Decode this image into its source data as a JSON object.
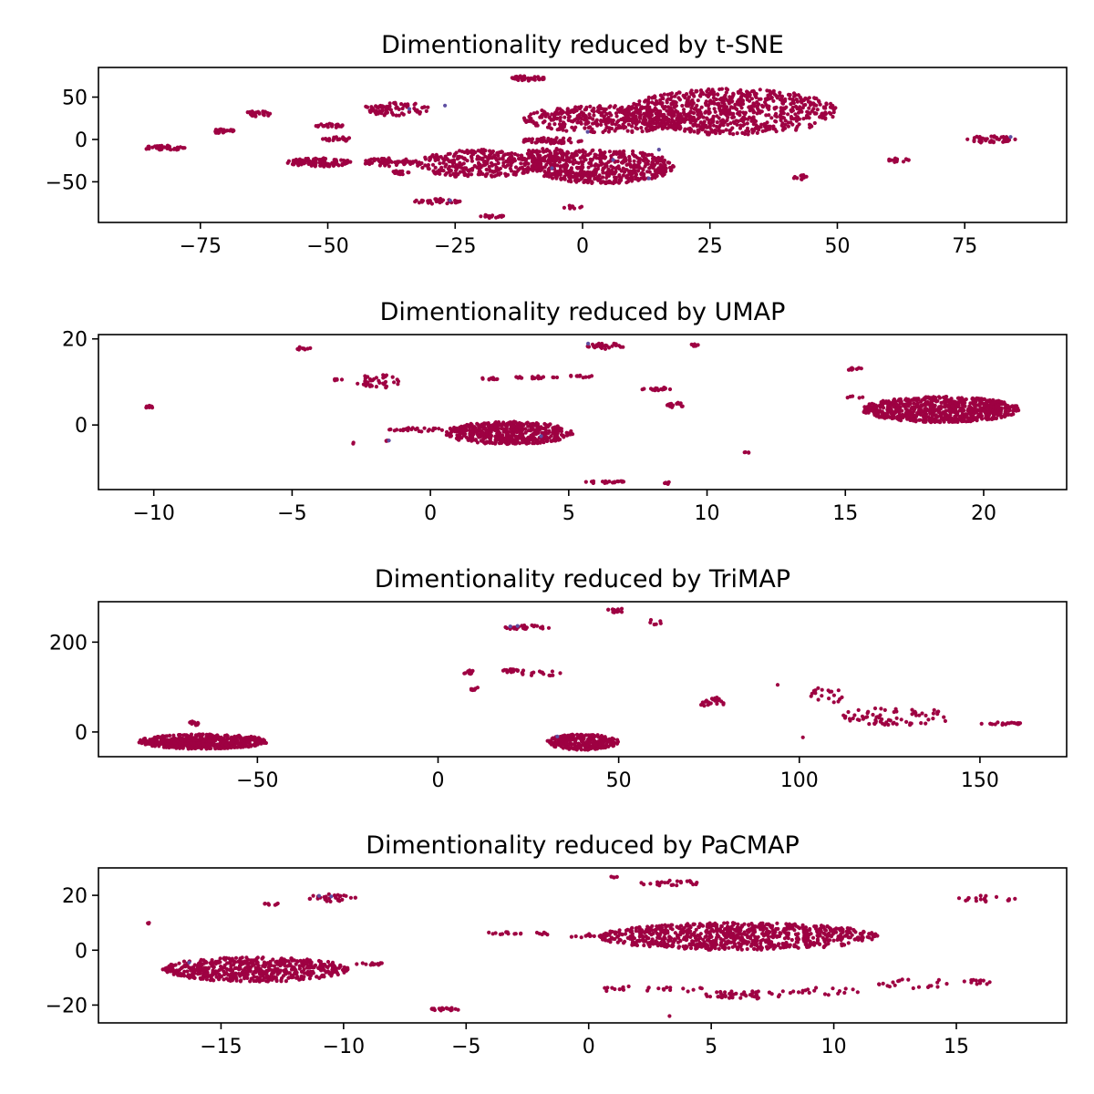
{
  "chart_data": [
    {
      "type": "scatter",
      "title": "Dimentionality reduced by t-SNE",
      "xlim": [
        -95,
        95
      ],
      "ylim": [
        -98,
        85
      ],
      "xticks": [
        -75,
        -50,
        -25,
        0,
        25,
        50,
        75
      ],
      "yticks": [
        -50,
        0,
        50
      ],
      "colors": {
        "main": "#9e0142",
        "minor": "#5e4fa2"
      },
      "clusters": [
        {
          "x": [
            -86,
            -78
          ],
          "y": [
            -13,
            -7
          ],
          "n": 40
        },
        {
          "x": [
            -73,
            -68
          ],
          "y": [
            7,
            12
          ],
          "n": 25
        },
        {
          "x": [
            -66,
            -61
          ],
          "y": [
            27,
            34
          ],
          "n": 25
        },
        {
          "x": [
            -58,
            -45
          ],
          "y": [
            -32,
            -22
          ],
          "n": 110
        },
        {
          "x": [
            -51,
            -45
          ],
          "y": [
            -2,
            3
          ],
          "n": 25
        },
        {
          "x": [
            -53,
            -47
          ],
          "y": [
            13,
            19
          ],
          "n": 25
        },
        {
          "x": [
            -43,
            -33
          ],
          "y": [
            -32,
            -22
          ],
          "n": 60
        },
        {
          "x": [
            -43,
            -30
          ],
          "y": [
            28,
            44
          ],
          "n": 80
        },
        {
          "x": [
            -38,
            -34
          ],
          "y": [
            -42,
            -37
          ],
          "n": 15
        },
        {
          "x": [
            -33,
            -8
          ],
          "y": [
            -45,
            -12
          ],
          "n": 330
        },
        {
          "x": [
            -12,
            0
          ],
          "y": [
            -5,
            2
          ],
          "n": 60
        },
        {
          "x": [
            -33,
            -24
          ],
          "y": [
            -76,
            -70
          ],
          "n": 40
        },
        {
          "x": [
            -20,
            -15
          ],
          "y": [
            -93,
            -88
          ],
          "n": 15
        },
        {
          "x": [
            -15,
            -7
          ],
          "y": [
            69,
            75
          ],
          "n": 40
        },
        {
          "x": [
            -10,
            18
          ],
          "y": [
            -52,
            -12
          ],
          "n": 520
        },
        {
          "x": [
            -12,
            -2
          ],
          "y": [
            -28,
            -10
          ],
          "n": 80
        },
        {
          "x": [
            -4,
            0
          ],
          "y": [
            -82,
            -78
          ],
          "n": 10
        },
        {
          "x": [
            -12,
            22
          ],
          "y": [
            8,
            40
          ],
          "n": 380
        },
        {
          "x": [
            8,
            50
          ],
          "y": [
            5,
            60
          ],
          "n": 760
        },
        {
          "x": [
            41,
            45
          ],
          "y": [
            -48,
            -42
          ],
          "n": 12
        },
        {
          "x": [
            60,
            64
          ],
          "y": [
            -27,
            -22
          ],
          "n": 15
        },
        {
          "x": [
            75,
            85
          ],
          "y": [
            -4,
            4
          ],
          "n": 45
        }
      ],
      "minor_points": [
        [
          84,
          3
        ],
        [
          -27,
          40
        ],
        [
          -34,
          36
        ],
        [
          -26,
          -72
        ],
        [
          6,
          -24
        ],
        [
          13,
          -46
        ],
        [
          -6,
          -34
        ],
        [
          15,
          -12
        ],
        [
          1,
          9
        ]
      ]
    },
    {
      "type": "scatter",
      "title": "Dimentionality reduced by UMAP",
      "xlim": [
        -12,
        23
      ],
      "ylim": [
        -15,
        21
      ],
      "xticks": [
        -10,
        -5,
        0,
        5,
        10,
        15,
        20
      ],
      "yticks": [
        0,
        20
      ],
      "colors": {
        "main": "#9e0142",
        "minor": "#5e4fa2"
      },
      "clusters": [
        {
          "x": [
            -10.3,
            -10.0
          ],
          "y": [
            3.9,
            4.5
          ],
          "n": 8
        },
        {
          "x": [
            -4.9,
            -4.3
          ],
          "y": [
            17.0,
            18.2
          ],
          "n": 8
        },
        {
          "x": [
            -3.5,
            -3.0
          ],
          "y": [
            10.2,
            10.8
          ],
          "n": 6
        },
        {
          "x": [
            -2.7,
            -1.1
          ],
          "y": [
            8.5,
            11.8
          ],
          "n": 40
        },
        {
          "x": [
            -2.8,
            -2.7
          ],
          "y": [
            -4.5,
            -4.0
          ],
          "n": 2
        },
        {
          "x": [
            -1.7,
            -1.5
          ],
          "y": [
            -4.0,
            -3.4
          ],
          "n": 4
        },
        {
          "x": [
            -1.5,
            0.5
          ],
          "y": [
            -1.6,
            -0.6
          ],
          "n": 25
        },
        {
          "x": [
            0.5,
            5.2
          ],
          "y": [
            -4.5,
            0.8
          ],
          "n": 520
        },
        {
          "x": [
            1.8,
            2.5
          ],
          "y": [
            10.5,
            11.2
          ],
          "n": 10
        },
        {
          "x": [
            3.0,
            4.8
          ],
          "y": [
            10.7,
            11.4
          ],
          "n": 20
        },
        {
          "x": [
            5.0,
            5.9
          ],
          "y": [
            11.0,
            11.7
          ],
          "n": 12
        },
        {
          "x": [
            5.6,
            7.0
          ],
          "y": [
            17.6,
            19.0
          ],
          "n": 30
        },
        {
          "x": [
            5.6,
            7.0
          ],
          "y": [
            -13.6,
            -12.8
          ],
          "n": 20
        },
        {
          "x": [
            7.6,
            8.7
          ],
          "y": [
            8.0,
            8.8
          ],
          "n": 20
        },
        {
          "x": [
            8.4,
            9.2
          ],
          "y": [
            4.0,
            5.3
          ],
          "n": 15
        },
        {
          "x": [
            8.4,
            8.8
          ],
          "y": [
            -13.8,
            -13.2
          ],
          "n": 6
        },
        {
          "x": [
            9.4,
            9.8
          ],
          "y": [
            18.2,
            18.9
          ],
          "n": 6
        },
        {
          "x": [
            11.3,
            11.6
          ],
          "y": [
            -6.5,
            -5.9
          ],
          "n": 4
        },
        {
          "x": [
            15.0,
            15.7
          ],
          "y": [
            12.6,
            13.4
          ],
          "n": 10
        },
        {
          "x": [
            15.0,
            15.7
          ],
          "y": [
            6.2,
            6.7
          ],
          "n": 5
        },
        {
          "x": [
            15.6,
            21.3
          ],
          "y": [
            0.6,
            6.6
          ],
          "n": 780
        }
      ],
      "minor_points": [
        [
          5.7,
          18.9
        ],
        [
          -1.5,
          -3.6
        ],
        [
          4.0,
          -2.6
        ]
      ]
    },
    {
      "type": "scatter",
      "title": "Dimentionality reduced by TriMAP",
      "xlim": [
        -94,
        174
      ],
      "ylim": [
        -55,
        290
      ],
      "xticks": [
        -50,
        0,
        50,
        100,
        150
      ],
      "yticks": [
        0,
        200
      ],
      "colors": {
        "main": "#9e0142",
        "minor": "#5e4fa2"
      },
      "clusters": [
        {
          "x": [
            -83,
            -47
          ],
          "y": [
            -38,
            -5
          ],
          "n": 520
        },
        {
          "x": [
            -69,
            -65
          ],
          "y": [
            15,
            25
          ],
          "n": 12
        },
        {
          "x": [
            7,
            10
          ],
          "y": [
            128,
            138
          ],
          "n": 10
        },
        {
          "x": [
            9,
            13
          ],
          "y": [
            90,
            99
          ],
          "n": 8
        },
        {
          "x": [
            17,
            25
          ],
          "y": [
            132,
            140
          ],
          "n": 15
        },
        {
          "x": [
            23,
            34
          ],
          "y": [
            125,
            136
          ],
          "n": 15
        },
        {
          "x": [
            17,
            32
          ],
          "y": [
            228,
            238
          ],
          "n": 30
        },
        {
          "x": [
            46,
            53
          ],
          "y": [
            265,
            275
          ],
          "n": 12
        },
        {
          "x": [
            55,
            67
          ],
          "y": [
            237,
            250
          ],
          "n": 6
        },
        {
          "x": [
            30,
            50
          ],
          "y": [
            -40,
            -5
          ],
          "n": 260
        },
        {
          "x": [
            72,
            80
          ],
          "y": [
            55,
            78
          ],
          "n": 25
        },
        {
          "x": [
            103,
            112
          ],
          "y": [
            60,
            105
          ],
          "n": 20
        },
        {
          "x": [
            111,
            143
          ],
          "y": [
            15,
            55
          ],
          "n": 70
        },
        {
          "x": [
            150,
            162
          ],
          "y": [
            16,
            22
          ],
          "n": 20
        }
      ],
      "isolated_points": [
        [
          94,
          105
        ],
        [
          101,
          -12
        ],
        [
          137,
          30
        ]
      ],
      "minor_points": [
        [
          20,
          235
        ],
        [
          22,
          236
        ],
        [
          33,
          -10
        ]
      ]
    },
    {
      "type": "scatter",
      "title": "Dimentionality reduced by PaCMAP",
      "xlim": [
        -20,
        19.5
      ],
      "ylim": [
        -26.5,
        30
      ],
      "xticks": [
        -15,
        -10,
        -5,
        0,
        5,
        10,
        15
      ],
      "yticks": [
        -20,
        0,
        20
      ],
      "colors": {
        "main": "#9e0142",
        "minor": "#5e4fa2"
      },
      "clusters": [
        {
          "x": [
            -18.0,
            -17.9
          ],
          "y": [
            9.5,
            10.3
          ],
          "n": 3
        },
        {
          "x": [
            -17.4,
            -9.8
          ],
          "y": [
            -11.5,
            -2.5
          ],
          "n": 560
        },
        {
          "x": [
            -13.3,
            -12.6
          ],
          "y": [
            16.4,
            17.3
          ],
          "n": 8
        },
        {
          "x": [
            -11.5,
            -9.5
          ],
          "y": [
            17.5,
            20.5
          ],
          "n": 30
        },
        {
          "x": [
            -9.5,
            -8.3
          ],
          "y": [
            -5.5,
            -4.5
          ],
          "n": 12
        },
        {
          "x": [
            -6.6,
            -5.2
          ],
          "y": [
            -22.0,
            -21.0
          ],
          "n": 20
        },
        {
          "x": [
            -4.3,
            -1.2
          ],
          "y": [
            5.5,
            6.8
          ],
          "n": 18
        },
        {
          "x": [
            -1.2,
            0.9
          ],
          "y": [
            4.5,
            6.0
          ],
          "n": 15
        },
        {
          "x": [
            0.9,
            1.2
          ],
          "y": [
            26.3,
            27.3
          ],
          "n": 4
        },
        {
          "x": [
            0.4,
            11.8
          ],
          "y": [
            0.0,
            10.0
          ],
          "n": 800
        },
        {
          "x": [
            2.0,
            4.8
          ],
          "y": [
            23.5,
            25.5
          ],
          "n": 25
        },
        {
          "x": [
            0.3,
            4.9
          ],
          "y": [
            -15.5,
            -13.0
          ],
          "n": 25
        },
        {
          "x": [
            4.7,
            7.9
          ],
          "y": [
            -17.8,
            -14.8
          ],
          "n": 45
        },
        {
          "x": [
            7.9,
            11.1
          ],
          "y": [
            -16.5,
            -13.5
          ],
          "n": 20
        },
        {
          "x": [
            11.5,
            14.7
          ],
          "y": [
            -14.0,
            -10.0
          ],
          "n": 20
        },
        {
          "x": [
            15.1,
            16.6
          ],
          "y": [
            -12.5,
            -10.8
          ],
          "n": 12
        },
        {
          "x": [
            14.9,
            17.5
          ],
          "y": [
            17.6,
            20.0
          ],
          "n": 20
        }
      ],
      "isolated_points": [
        [
          3.3,
          -24.0
        ],
        [
          -2.0,
          6.0
        ]
      ],
      "minor_points": [
        [
          -11.0,
          19.8
        ],
        [
          -16.3,
          -4.5
        ],
        [
          -10.5,
          19.6
        ]
      ]
    }
  ]
}
